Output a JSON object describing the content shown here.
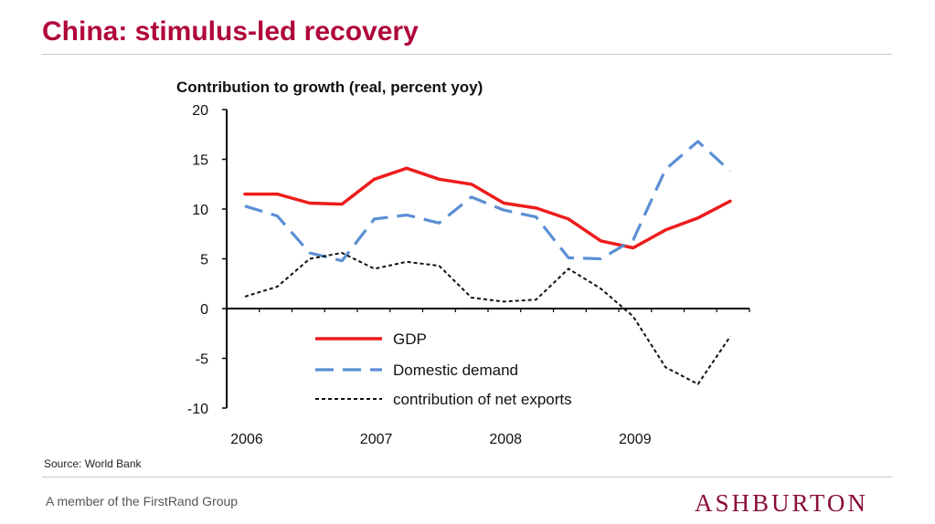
{
  "slide": {
    "title": "China: stimulus-led recovery",
    "source": "Source: World Bank",
    "footer": "A member of the FirstRand Group",
    "brand": "ASHBURTON",
    "title_color": "#b0063a",
    "brand_color": "#8a0e35"
  },
  "chart_data": {
    "type": "line",
    "title": "Contribution to growth (real, percent yoy)",
    "xlabel": "",
    "ylabel": "",
    "x_tick_labels": [
      "2006",
      "2007",
      "2008",
      "2009"
    ],
    "x": [
      "2006Q1",
      "2006Q2",
      "2006Q3",
      "2006Q4",
      "2007Q1",
      "2007Q2",
      "2007Q3",
      "2007Q4",
      "2008Q1",
      "2008Q2",
      "2008Q3",
      "2008Q4",
      "2009Q1",
      "2009Q2",
      "2009Q3",
      "2009Q4"
    ],
    "ylim": [
      -10,
      20
    ],
    "yticks": [
      20,
      15,
      10,
      5,
      0,
      -5,
      -10
    ],
    "grid": false,
    "legend_position": "bottom-center",
    "series": [
      {
        "name": "GDP",
        "color": "#ee1c1c",
        "style": "solid",
        "values": [
          11.5,
          11.5,
          10.6,
          10.5,
          13.0,
          14.1,
          13.0,
          12.5,
          10.6,
          10.1,
          9.0,
          6.8,
          6.1,
          7.9,
          9.1,
          10.8
        ]
      },
      {
        "name": "Domestic demand",
        "color": "#5b8fd4",
        "style": "dashed",
        "values": [
          10.3,
          9.3,
          5.6,
          4.8,
          9.0,
          9.4,
          8.6,
          11.2,
          9.9,
          9.2,
          5.1,
          5.0,
          6.9,
          14.0,
          16.8,
          13.8
        ]
      },
      {
        "name": "contribution of net exports",
        "color": "#111111",
        "style": "dotted",
        "values": [
          1.2,
          2.2,
          5.0,
          5.6,
          4.0,
          4.7,
          4.3,
          1.1,
          0.7,
          0.9,
          4.0,
          2.0,
          -0.8,
          -5.9,
          -7.6,
          -2.8
        ]
      }
    ]
  }
}
